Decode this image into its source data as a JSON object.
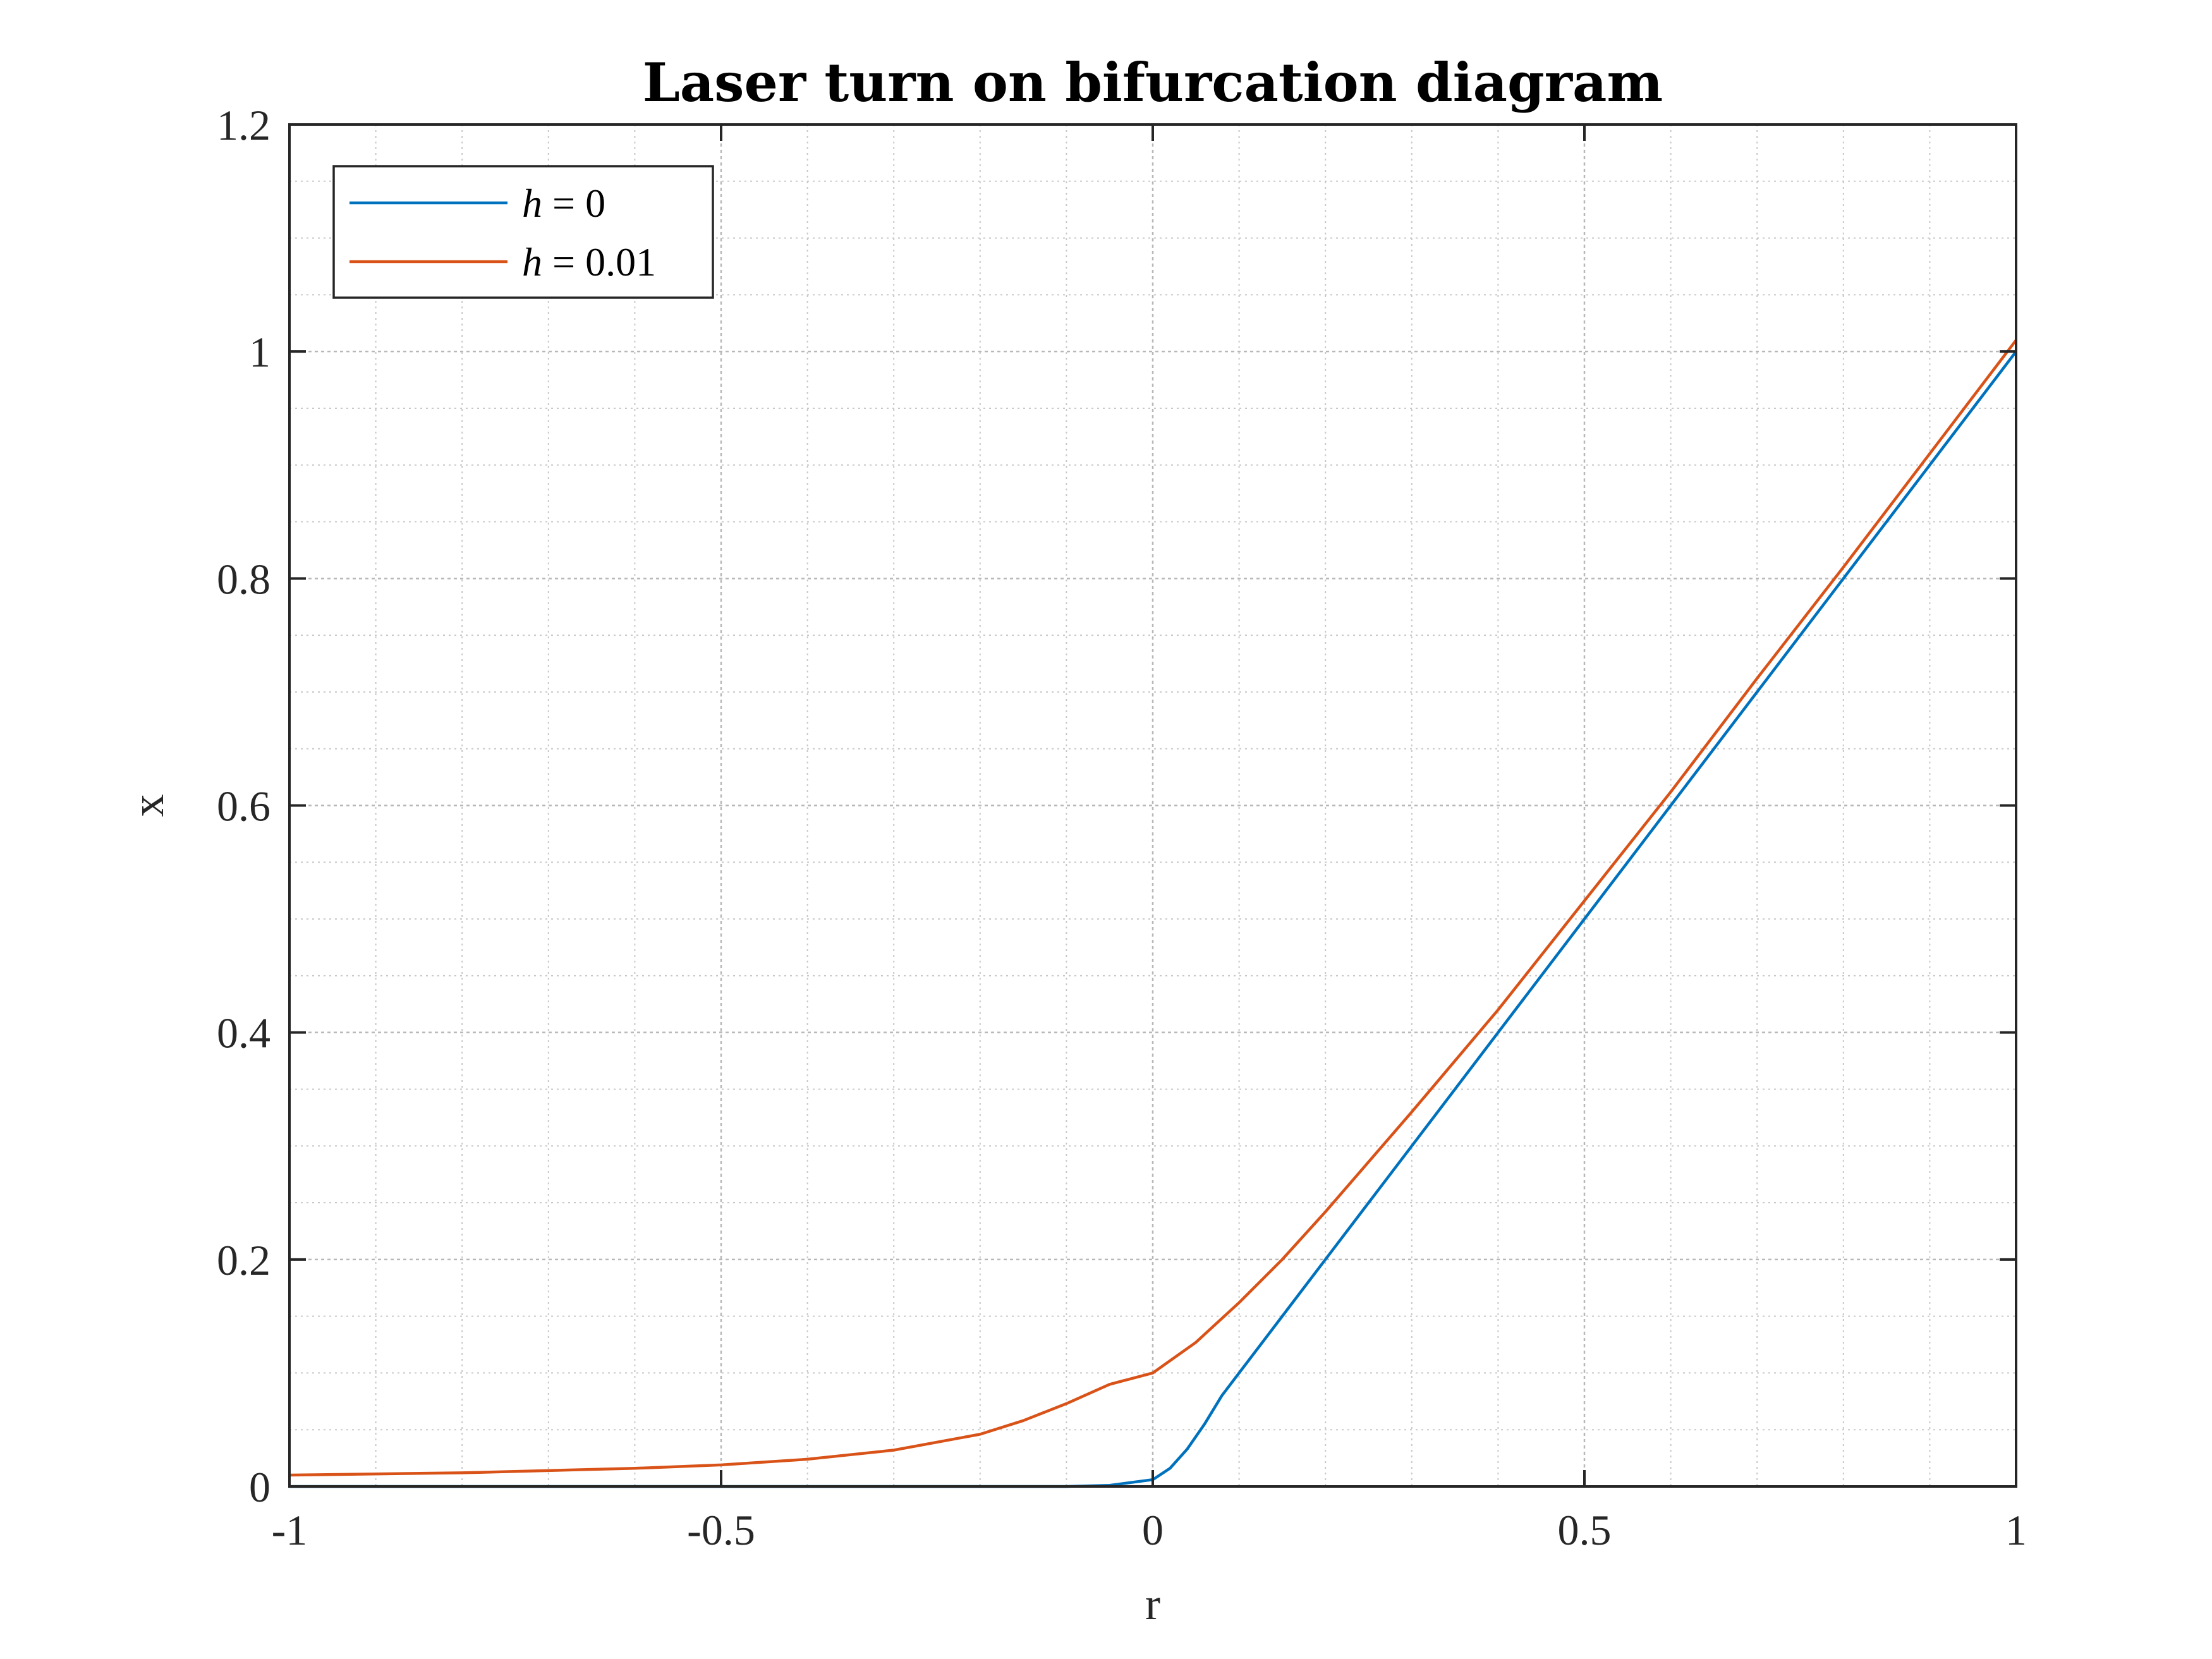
{
  "chart_data": {
    "type": "line",
    "title": "Laser turn on bifurcation diagram",
    "xlabel": "r",
    "ylabel": "x",
    "xlim": [
      -1,
      1
    ],
    "ylim": [
      0,
      1.2
    ],
    "grid": true,
    "minor_grid": true,
    "legend_position": "top-left",
    "x_ticks": [
      -1,
      -0.5,
      0,
      0.5,
      1
    ],
    "x_tick_labels": [
      "-1",
      "-0.5",
      "0",
      "0.5",
      "1"
    ],
    "y_ticks": [
      0,
      0.2,
      0.4,
      0.6,
      0.8,
      1,
      1.2
    ],
    "y_tick_labels": [
      "0",
      "0.2",
      "0.4",
      "0.6",
      "0.8",
      "1",
      "1.2"
    ],
    "series": [
      {
        "name": "h = 0",
        "legend_var": "h",
        "legend_eq": " = 0",
        "color": "#0072BD",
        "x": [
          -1,
          -0.5,
          -0.2,
          -0.1,
          -0.05,
          0,
          0.02,
          0.04,
          0.06,
          0.08,
          0.1,
          0.15,
          0.2,
          0.3,
          0.4,
          0.5,
          0.6,
          0.7,
          0.8,
          0.9,
          1
        ],
        "y": [
          0,
          0,
          0,
          0,
          0.001,
          0.006,
          0.016,
          0.033,
          0.055,
          0.08,
          0.1,
          0.15,
          0.2,
          0.3,
          0.4,
          0.5,
          0.6,
          0.7,
          0.8,
          0.9,
          1
        ]
      },
      {
        "name": "h = 0.01",
        "legend_var": "h",
        "legend_eq": " = 0.01",
        "color": "#D95319",
        "x": [
          -1,
          -0.8,
          -0.6,
          -0.5,
          -0.4,
          -0.3,
          -0.2,
          -0.15,
          -0.1,
          -0.05,
          0,
          0.05,
          0.1,
          0.15,
          0.2,
          0.3,
          0.4,
          0.5,
          0.6,
          0.7,
          0.8,
          0.9,
          1
        ],
        "y": [
          0.01,
          0.012,
          0.016,
          0.019,
          0.024,
          0.032,
          0.046,
          0.058,
          0.073,
          0.09,
          0.1,
          0.127,
          0.162,
          0.2,
          0.242,
          0.33,
          0.42,
          0.516,
          0.612,
          0.712,
          0.81,
          0.91,
          1.01
        ]
      }
    ]
  }
}
